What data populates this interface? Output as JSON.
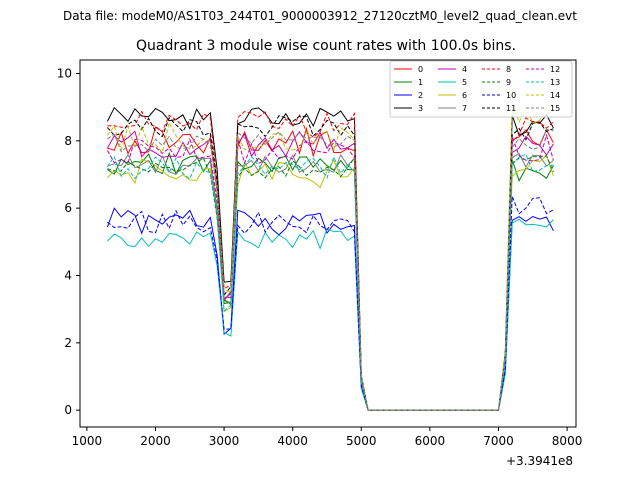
{
  "figure": {
    "suptitle": "Data file: modeM0/AS1T03_244T01_9000003912_27120cztM0_level2_quad_clean.evt"
  },
  "chart_data": {
    "type": "line",
    "title": "Quadrant 3 module wise count rates with 100.0s bins.",
    "xlabel": "",
    "ylabel": "",
    "x_offset_label": "+3.3941e8",
    "xlim": [
      900,
      8130
    ],
    "ylim": [
      -0.5,
      10.4
    ],
    "x_ticks": [
      1000,
      2000,
      3000,
      4000,
      5000,
      6000,
      7000,
      8000
    ],
    "x_tick_labels": [
      "1000",
      "2000",
      "3000",
      "4000",
      "5000",
      "6000",
      "7000",
      "8000"
    ],
    "y_ticks": [
      0,
      2,
      4,
      6,
      8,
      10
    ],
    "y_tick_labels": [
      "0",
      "2",
      "4",
      "6",
      "8",
      "10"
    ],
    "grid": false,
    "legend_position": "top-right",
    "legend_columns": 4,
    "x": {
      "start": 1300,
      "step": 100,
      "count": 66
    },
    "envelope": [
      [
        1300,
        0,
        0
      ],
      [
        2700,
        0,
        0
      ],
      [
        2800,
        0,
        0
      ],
      [
        2900,
        2,
        -2.0
      ],
      [
        3000,
        2,
        -3.5
      ],
      [
        3100,
        1,
        -1.0
      ],
      [
        3200,
        0,
        0
      ],
      [
        4900,
        0,
        0
      ],
      [
        5000,
        0,
        -6.5
      ],
      [
        5100,
        0,
        -99
      ],
      [
        7000,
        0,
        -99
      ],
      [
        7100,
        0,
        -7.0
      ],
      [
        7200,
        0,
        0
      ],
      [
        7800,
        0,
        0
      ]
    ],
    "series": [
      {
        "name": "0",
        "color": "#ff0000",
        "dashed": false,
        "base": 8.0,
        "base2": 8.0,
        "amp": 0.45,
        "seed": 1
      },
      {
        "name": "1",
        "color": "#008000",
        "dashed": false,
        "base": 7.3,
        "base2": 7.1,
        "amp": 0.35,
        "seed": 2
      },
      {
        "name": "2",
        "color": "#0000ff",
        "dashed": false,
        "base": 5.6,
        "base2": 5.7,
        "amp": 0.4,
        "seed": 3
      },
      {
        "name": "3",
        "color": "#000000",
        "dashed": false,
        "base": 8.7,
        "base2": 8.5,
        "amp": 0.35,
        "seed": 4
      },
      {
        "name": "4",
        "color": "#bf00bf",
        "dashed": false,
        "base": 7.9,
        "base2": 7.8,
        "amp": 0.4,
        "seed": 5
      },
      {
        "name": "5",
        "color": "#00bfbf",
        "dashed": false,
        "base": 5.1,
        "base2": 5.4,
        "amp": 0.3,
        "seed": 6
      },
      {
        "name": "6",
        "color": "#bfbf00",
        "dashed": false,
        "base": 7.0,
        "base2": 7.2,
        "amp": 0.45,
        "seed": 7
      },
      {
        "name": "7",
        "color": "#808080",
        "dashed": false,
        "base": 7.3,
        "base2": 7.4,
        "amp": 0.3,
        "seed": 8
      },
      {
        "name": "8",
        "color": "#ff0000",
        "dashed": true,
        "base": 8.5,
        "base2": 8.3,
        "amp": 0.4,
        "seed": 9
      },
      {
        "name": "9",
        "color": "#008000",
        "dashed": true,
        "base": 7.2,
        "base2": 7.3,
        "amp": 0.3,
        "seed": 10
      },
      {
        "name": "10",
        "color": "#0000ff",
        "dashed": true,
        "base": 5.6,
        "base2": 6.0,
        "amp": 0.35,
        "seed": 11
      },
      {
        "name": "11",
        "color": "#000000",
        "dashed": true,
        "base": 8.4,
        "base2": 8.2,
        "amp": 0.35,
        "seed": 12
      },
      {
        "name": "12",
        "color": "#bf00bf",
        "dashed": true,
        "base": 7.7,
        "base2": 7.8,
        "amp": 0.4,
        "seed": 13
      },
      {
        "name": "13",
        "color": "#00bfbf",
        "dashed": true,
        "base": 7.2,
        "base2": 7.4,
        "amp": 0.35,
        "seed": 14
      },
      {
        "name": "14",
        "color": "#bfbf00",
        "dashed": true,
        "base": 8.1,
        "base2": 8.9,
        "amp": 0.45,
        "seed": 15
      },
      {
        "name": "15",
        "color": "#808080",
        "dashed": true,
        "base": 8.0,
        "base2": 8.0,
        "amp": 0.35,
        "seed": 16
      }
    ]
  }
}
